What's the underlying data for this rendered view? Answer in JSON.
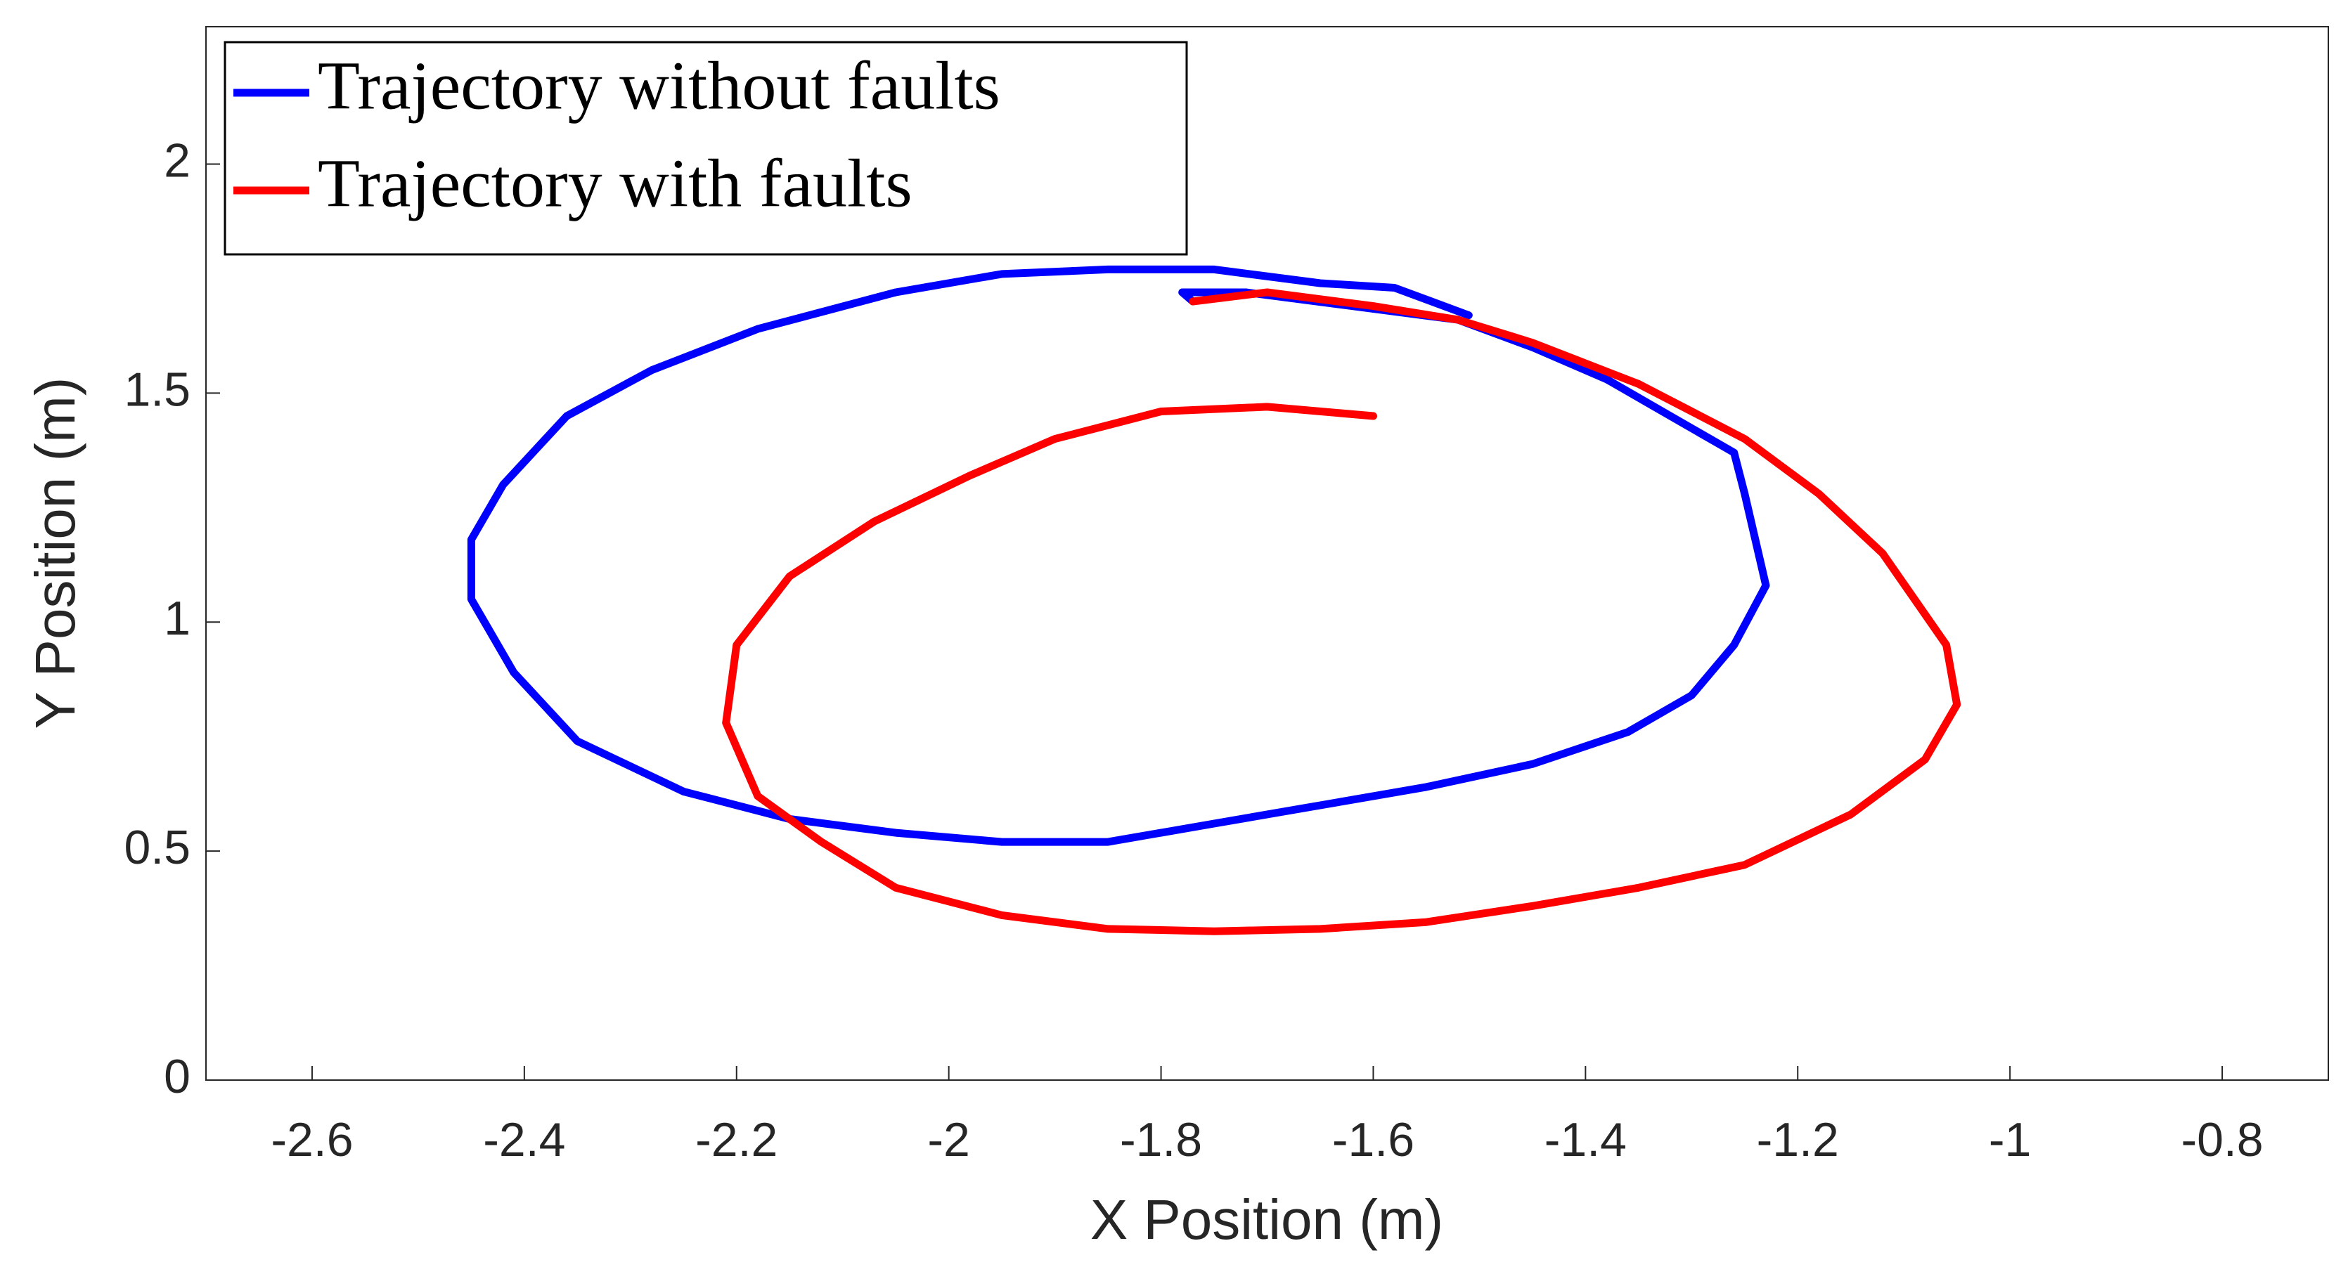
{
  "chart_data": {
    "type": "line",
    "xlabel": "X Position (m)",
    "ylabel": "Y Position (m)",
    "xlim": [
      -2.7,
      -0.7
    ],
    "ylim": [
      0,
      2.3
    ],
    "xticks": [
      -2.6,
      -2.4,
      -2.2,
      -2,
      -1.8,
      -1.6,
      -1.4,
      -1.2,
      -1,
      -0.8
    ],
    "yticks": [
      0,
      0.5,
      1,
      1.5,
      2
    ],
    "grid": false,
    "legend": "upper left",
    "series": [
      {
        "name": "Trajectory without faults",
        "color": "#0000ff",
        "x": [
          -1.77,
          -1.78,
          -1.72,
          -1.62,
          -1.52,
          -1.45,
          -1.38,
          -1.32,
          -1.26,
          -1.25,
          -1.24,
          -1.23,
          -1.26,
          -1.3,
          -1.36,
          -1.45,
          -1.55,
          -1.65,
          -1.75,
          -1.85,
          -1.95,
          -2.05,
          -2.15,
          -2.25,
          -2.35,
          -2.41,
          -2.45,
          -2.45,
          -2.42,
          -2.36,
          -2.28,
          -2.18,
          -2.05,
          -1.95,
          -1.85,
          -1.75,
          -1.65,
          -1.58,
          -1.51
        ],
        "y": [
          1.7,
          1.72,
          1.72,
          1.69,
          1.66,
          1.6,
          1.53,
          1.45,
          1.37,
          1.28,
          1.18,
          1.08,
          0.95,
          0.84,
          0.76,
          0.69,
          0.64,
          0.6,
          0.56,
          0.52,
          0.52,
          0.54,
          0.57,
          0.63,
          0.74,
          0.89,
          1.05,
          1.18,
          1.3,
          1.45,
          1.55,
          1.64,
          1.72,
          1.76,
          1.77,
          1.77,
          1.74,
          1.73,
          1.67
        ]
      },
      {
        "name": "Trajectory with faults",
        "color": "#ff0000",
        "x": [
          -1.77,
          -1.7,
          -1.6,
          -1.52,
          -1.45,
          -1.35,
          -1.25,
          -1.18,
          -1.12,
          -1.06,
          -1.05,
          -1.08,
          -1.15,
          -1.25,
          -1.35,
          -1.45,
          -1.55,
          -1.65,
          -1.75,
          -1.85,
          -1.95,
          -2.05,
          -2.12,
          -2.18,
          -2.21,
          -2.2,
          -2.15,
          -2.07,
          -1.98,
          -1.9,
          -1.8,
          -1.7,
          -1.6
        ],
        "y": [
          1.7,
          1.72,
          1.69,
          1.66,
          1.61,
          1.52,
          1.4,
          1.28,
          1.15,
          0.95,
          0.82,
          0.7,
          0.58,
          0.47,
          0.42,
          0.38,
          0.345,
          0.33,
          0.325,
          0.33,
          0.36,
          0.42,
          0.52,
          0.62,
          0.78,
          0.95,
          1.1,
          1.22,
          1.32,
          1.4,
          1.46,
          1.47,
          1.45
        ]
      }
    ]
  }
}
